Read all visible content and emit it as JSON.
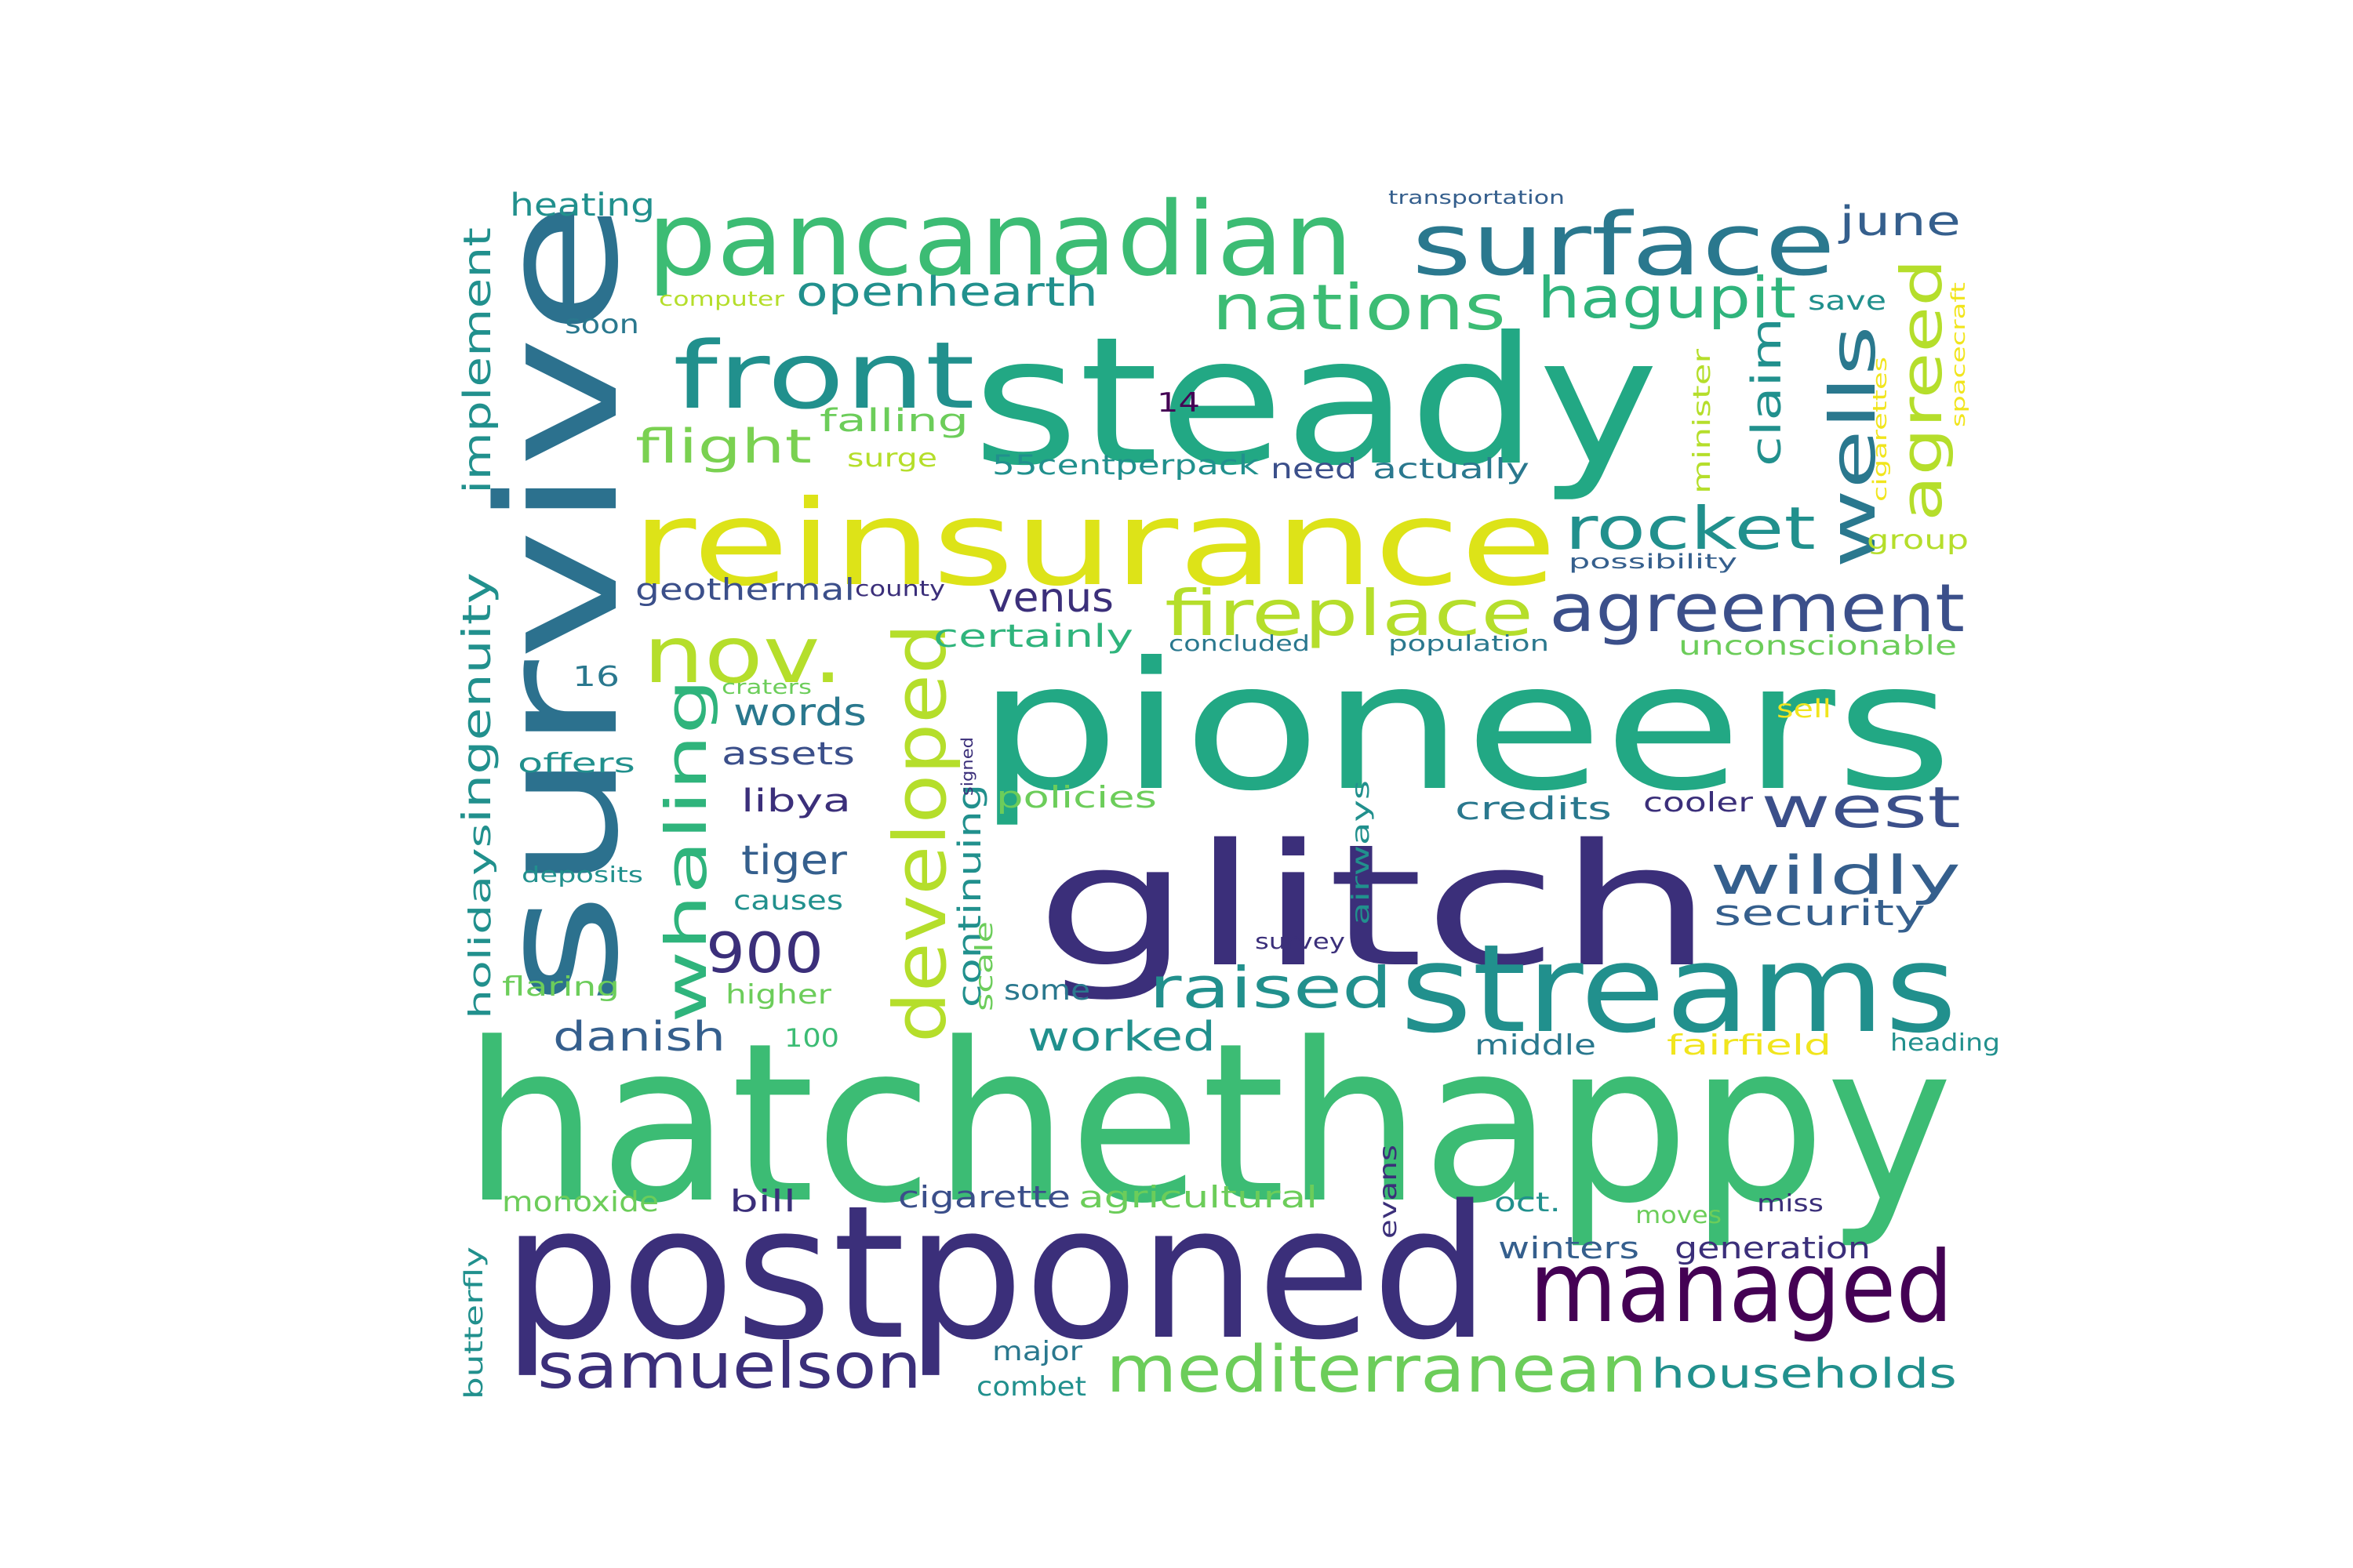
{
  "palette": {
    "deep_purple": "#440154",
    "indigo": "#3b2f7a",
    "navy": "#3b4f8a",
    "slate_blue": "#355f8d",
    "steel_blue": "#2c718e",
    "teal_blue": "#2a788e",
    "teal": "#21908d",
    "aqua_green": "#22a884",
    "green": "#2fb47c",
    "leaf_green": "#3cbc74",
    "light_green": "#6ccd5a",
    "lime": "#7ad151",
    "yellow_green": "#b5de2b",
    "yellow": "#dde318",
    "gold": "#f1e51d",
    "background": "#ffffff"
  },
  "words": [
    {
      "text": "hatchethappy",
      "color": "leaf_green"
    },
    {
      "text": "postponed",
      "color": "indigo"
    },
    {
      "text": "pioneers",
      "color": "aqua_green"
    },
    {
      "text": "steady",
      "color": "aqua_green"
    },
    {
      "text": "survive",
      "color": "steel_blue"
    },
    {
      "text": "glitch",
      "color": "indigo"
    },
    {
      "text": "reinsurance",
      "color": "yellow"
    },
    {
      "text": "pancanadian",
      "color": "leaf_green"
    },
    {
      "text": "streams",
      "color": "teal"
    },
    {
      "text": "surface",
      "color": "teal_blue"
    },
    {
      "text": "managed",
      "color": "deep_purple"
    },
    {
      "text": "front",
      "color": "teal"
    },
    {
      "text": "agreement",
      "color": "navy"
    },
    {
      "text": "mediterranean",
      "color": "light_green"
    },
    {
      "text": "nov.",
      "color": "yellow_green"
    },
    {
      "text": "developed",
      "color": "yellow_green"
    },
    {
      "text": "samuelson",
      "color": "indigo"
    },
    {
      "text": "fireplace",
      "color": "yellow_green"
    },
    {
      "text": "nations",
      "color": "leaf_green"
    },
    {
      "text": "wells",
      "color": "teal_blue"
    },
    {
      "text": "rocket",
      "color": "teal"
    },
    {
      "text": "whaling",
      "color": "green"
    },
    {
      "text": "raised",
      "color": "teal"
    },
    {
      "text": "west",
      "color": "navy"
    },
    {
      "text": "agreed",
      "color": "yellow_green"
    },
    {
      "text": "hagupit",
      "color": "green"
    },
    {
      "text": "wildly",
      "color": "slate_blue"
    },
    {
      "text": "households",
      "color": "teal"
    },
    {
      "text": "900",
      "color": "indigo"
    },
    {
      "text": "flight",
      "color": "lime"
    },
    {
      "text": "openhearth",
      "color": "teal"
    },
    {
      "text": "ingenuity",
      "color": "teal"
    },
    {
      "text": "june",
      "color": "slate_blue"
    },
    {
      "text": "claim",
      "color": "teal"
    },
    {
      "text": "implement",
      "color": "teal"
    },
    {
      "text": "tiger",
      "color": "slate_blue"
    },
    {
      "text": "words",
      "color": "teal_blue"
    },
    {
      "text": "danish",
      "color": "slate_blue"
    },
    {
      "text": "worked",
      "color": "teal"
    },
    {
      "text": "venus",
      "color": "indigo"
    },
    {
      "text": "security",
      "color": "slate_blue"
    },
    {
      "text": "holidays",
      "color": "teal"
    },
    {
      "text": "continuing",
      "color": "teal"
    },
    {
      "text": "credits",
      "color": "teal_blue"
    },
    {
      "text": "certainly",
      "color": "green"
    },
    {
      "text": "geothermal",
      "color": "navy"
    },
    {
      "text": "assets",
      "color": "navy"
    },
    {
      "text": "libya",
      "color": "indigo"
    },
    {
      "text": "55centperpack",
      "color": "teal"
    },
    {
      "text": "heating",
      "color": "teal"
    },
    {
      "text": "falling",
      "color": "light_green"
    },
    {
      "text": "cigarette",
      "color": "navy"
    },
    {
      "text": "agricultural",
      "color": "light_green"
    },
    {
      "text": "policies",
      "color": "light_green"
    },
    {
      "text": "need",
      "color": "navy"
    },
    {
      "text": "actually",
      "color": "teal_blue"
    },
    {
      "text": "unconscionable",
      "color": "light_green"
    },
    {
      "text": "middle",
      "color": "teal_blue"
    },
    {
      "text": "fairfield",
      "color": "gold"
    },
    {
      "text": "generation",
      "color": "indigo"
    },
    {
      "text": "winters",
      "color": "slate_blue"
    },
    {
      "text": "bill",
      "color": "indigo"
    },
    {
      "text": "monoxide",
      "color": "light_green"
    },
    {
      "text": "some",
      "color": "teal_blue"
    },
    {
      "text": "causes",
      "color": "teal"
    },
    {
      "text": "higher",
      "color": "light_green"
    },
    {
      "text": "flaring",
      "color": "light_green"
    },
    {
      "text": "offers",
      "color": "teal"
    },
    {
      "text": "group",
      "color": "yellow_green"
    },
    {
      "text": "save",
      "color": "teal"
    },
    {
      "text": "minister",
      "color": "yellow_green"
    },
    {
      "text": "airways",
      "color": "teal"
    },
    {
      "text": "evans",
      "color": "indigo"
    },
    {
      "text": "scale",
      "color": "light_green"
    },
    {
      "text": "cooler",
      "color": "indigo"
    },
    {
      "text": "major",
      "color": "teal_blue"
    },
    {
      "text": "combet",
      "color": "teal"
    },
    {
      "text": "butterfly",
      "color": "teal"
    },
    {
      "text": "oct.",
      "color": "teal"
    },
    {
      "text": "moves",
      "color": "light_green"
    },
    {
      "text": "miss",
      "color": "indigo"
    },
    {
      "text": "heading",
      "color": "teal"
    },
    {
      "text": "soon",
      "color": "teal_blue"
    },
    {
      "text": "surge",
      "color": "yellow_green"
    },
    {
      "text": "16",
      "color": "teal_blue"
    },
    {
      "text": "14",
      "color": "deep_purple"
    },
    {
      "text": "100",
      "color": "leaf_green"
    },
    {
      "text": "sell",
      "color": "gold"
    },
    {
      "text": "craters",
      "color": "light_green"
    },
    {
      "text": "deposits",
      "color": "teal"
    },
    {
      "text": "survey",
      "color": "indigo"
    },
    {
      "text": "county",
      "color": "indigo"
    },
    {
      "text": "concluded",
      "color": "teal_blue"
    },
    {
      "text": "population",
      "color": "teal_blue"
    },
    {
      "text": "possibility",
      "color": "slate_blue"
    },
    {
      "text": "computer",
      "color": "yellow_green"
    },
    {
      "text": "transportation",
      "color": "slate_blue"
    },
    {
      "text": "signed",
      "color": "indigo"
    },
    {
      "text": "cigarettes",
      "color": "gold"
    },
    {
      "text": "spacecraft",
      "color": "gold"
    }
  ]
}
